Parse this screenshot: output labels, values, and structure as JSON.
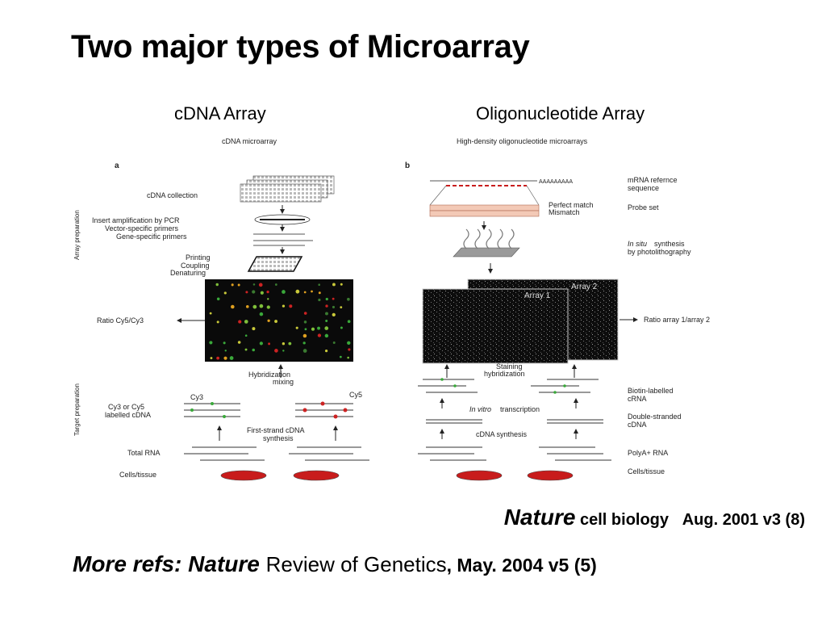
{
  "slide": {
    "title": "Two major types of Microarray",
    "col_left": "cDNA Array",
    "col_right": "Oligonucleotide Array"
  },
  "figure": {
    "left": {
      "heading": "cDNA microarray",
      "panel_letter": "a",
      "section_array": "Array preparation",
      "section_target": "Target preparation",
      "steps": [
        "cDNA collection",
        "Insert amplification by PCR",
        "Vector-specific primers",
        "Gene-specific primers",
        "Printing",
        "Coupling",
        "Denaturing",
        "Ratio Cy5/Cy3",
        "Hybridization",
        "mixing",
        "Cy3",
        "Cy5",
        "Cy3 or Cy5",
        "labelled cDNA",
        "First-strand cDNA",
        "synthesis",
        "Total RNA",
        "Cells/tissue"
      ]
    },
    "right": {
      "heading": "High-density oligonucleotide microarrays",
      "panel_letter": "b",
      "steps": [
        "mRNA refernce",
        "sequence",
        "Perfect match",
        "Mismatch",
        "Probe set",
        "In situ",
        "synthesis",
        "by photolithography",
        "Array 1",
        "Array 2",
        "Ratio array 1/array 2",
        "Staining",
        "hybridization",
        "Biotin-labelled",
        "cRNA",
        "In vitro",
        "transcription",
        "Double-stranded",
        "cDNA",
        "cDNA synthesis",
        "PolyA+ RNA",
        "Cells/tissue"
      ]
    }
  },
  "citation1": {
    "journal": "Nature",
    "section": "cell biology",
    "date": "Aug. 2001 v3 (8)"
  },
  "citation2": {
    "prefix": "More refs: Nature",
    "journal": "Review of Genetics",
    "date": ", May. 2004 v5 (5)"
  },
  "colors": {
    "cy3_green": "#3aa83a",
    "cy5_red": "#cc2222",
    "dish_red": "#c81c1c",
    "array_bg": "#0d0d0d"
  }
}
